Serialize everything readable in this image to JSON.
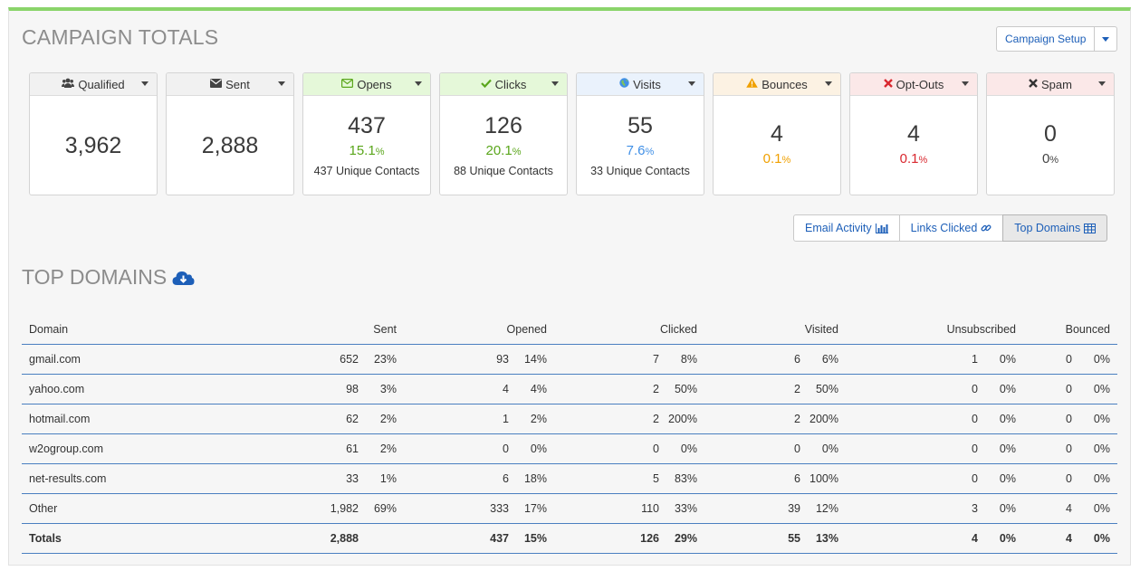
{
  "header": {
    "title": "CAMPAIGN TOTALS",
    "setup_button": "Campaign Setup"
  },
  "cards": [
    {
      "label": "Qualified",
      "icon": "users-icon",
      "value": "3,962",
      "pct": "",
      "pct_unit": "",
      "unique": ""
    },
    {
      "label": "Sent",
      "icon": "envelope-icon",
      "value": "2,888",
      "pct": "",
      "pct_unit": "",
      "unique": ""
    },
    {
      "label": "Opens",
      "icon": "envelope-open-icon",
      "value": "437",
      "pct": "15.1",
      "pct_unit": "%",
      "unique": "437 Unique Contacts"
    },
    {
      "label": "Clicks",
      "icon": "checkmark-icon",
      "value": "126",
      "pct": "20.1",
      "pct_unit": "%",
      "unique": "88 Unique Contacts"
    },
    {
      "label": "Visits",
      "icon": "globe-icon",
      "value": "55",
      "pct": "7.6",
      "pct_unit": "%",
      "unique": "33 Unique Contacts"
    },
    {
      "label": "Bounces",
      "icon": "warning-icon",
      "value": "4",
      "pct": "0.1",
      "pct_unit": "%",
      "unique": ""
    },
    {
      "label": "Opt-Outs",
      "icon": "x-icon",
      "value": "4",
      "pct": "0.1",
      "pct_unit": "%",
      "unique": ""
    },
    {
      "label": "Spam",
      "icon": "x-icon",
      "value": "0",
      "pct": "0",
      "pct_unit": "%",
      "unique": ""
    }
  ],
  "view_tabs": [
    {
      "label": "Email Activity",
      "icon": "bar-chart-icon"
    },
    {
      "label": "Links Clicked",
      "icon": "link-icon"
    },
    {
      "label": "Top Domains",
      "icon": "table-icon",
      "active": true
    }
  ],
  "section": {
    "title": "TOP DOMAINS",
    "icon": "cloud-download-icon"
  },
  "table": {
    "columns": [
      "Domain",
      "Sent",
      "Opened",
      "Clicked",
      "Visited",
      "Unsubscribed",
      "Bounced"
    ],
    "rows": [
      {
        "domain": "gmail.com",
        "sent": [
          "652",
          "23%"
        ],
        "opened": [
          "93",
          "14%"
        ],
        "clicked": [
          "7",
          "8%"
        ],
        "visited": [
          "6",
          "6%"
        ],
        "unsubscribed": [
          "1",
          "0%"
        ],
        "bounced": [
          "0",
          "0%"
        ]
      },
      {
        "domain": "yahoo.com",
        "sent": [
          "98",
          "3%"
        ],
        "opened": [
          "4",
          "4%"
        ],
        "clicked": [
          "2",
          "50%"
        ],
        "visited": [
          "2",
          "50%"
        ],
        "unsubscribed": [
          "0",
          "0%"
        ],
        "bounced": [
          "0",
          "0%"
        ]
      },
      {
        "domain": "hotmail.com",
        "sent": [
          "62",
          "2%"
        ],
        "opened": [
          "1",
          "2%"
        ],
        "clicked": [
          "2",
          "200%"
        ],
        "visited": [
          "2",
          "200%"
        ],
        "unsubscribed": [
          "0",
          "0%"
        ],
        "bounced": [
          "0",
          "0%"
        ]
      },
      {
        "domain": "w2ogroup.com",
        "sent": [
          "61",
          "2%"
        ],
        "opened": [
          "0",
          "0%"
        ],
        "clicked": [
          "0",
          "0%"
        ],
        "visited": [
          "0",
          "0%"
        ],
        "unsubscribed": [
          "0",
          "0%"
        ],
        "bounced": [
          "0",
          "0%"
        ]
      },
      {
        "domain": "net-results.com",
        "sent": [
          "33",
          "1%"
        ],
        "opened": [
          "6",
          "18%"
        ],
        "clicked": [
          "5",
          "83%"
        ],
        "visited": [
          "6",
          "100%"
        ],
        "unsubscribed": [
          "0",
          "0%"
        ],
        "bounced": [
          "0",
          "0%"
        ]
      },
      {
        "domain": "Other",
        "sent": [
          "1,982",
          "69%"
        ],
        "opened": [
          "333",
          "17%"
        ],
        "clicked": [
          "110",
          "33%"
        ],
        "visited": [
          "39",
          "12%"
        ],
        "unsubscribed": [
          "3",
          "0%"
        ],
        "bounced": [
          "4",
          "0%"
        ]
      }
    ],
    "totals": {
      "domain": "Totals",
      "sent": [
        "2,888",
        ""
      ],
      "opened": [
        "437",
        "15%"
      ],
      "clicked": [
        "126",
        "29%"
      ],
      "visited": [
        "55",
        "13%"
      ],
      "unsubscribed": [
        "4",
        "0%"
      ],
      "bounced": [
        "4",
        "0%"
      ]
    }
  },
  "colors": {
    "accent_bar": "#8ad46a",
    "link": "#1d5fb8",
    "table_rule": "#4a7fc0"
  }
}
